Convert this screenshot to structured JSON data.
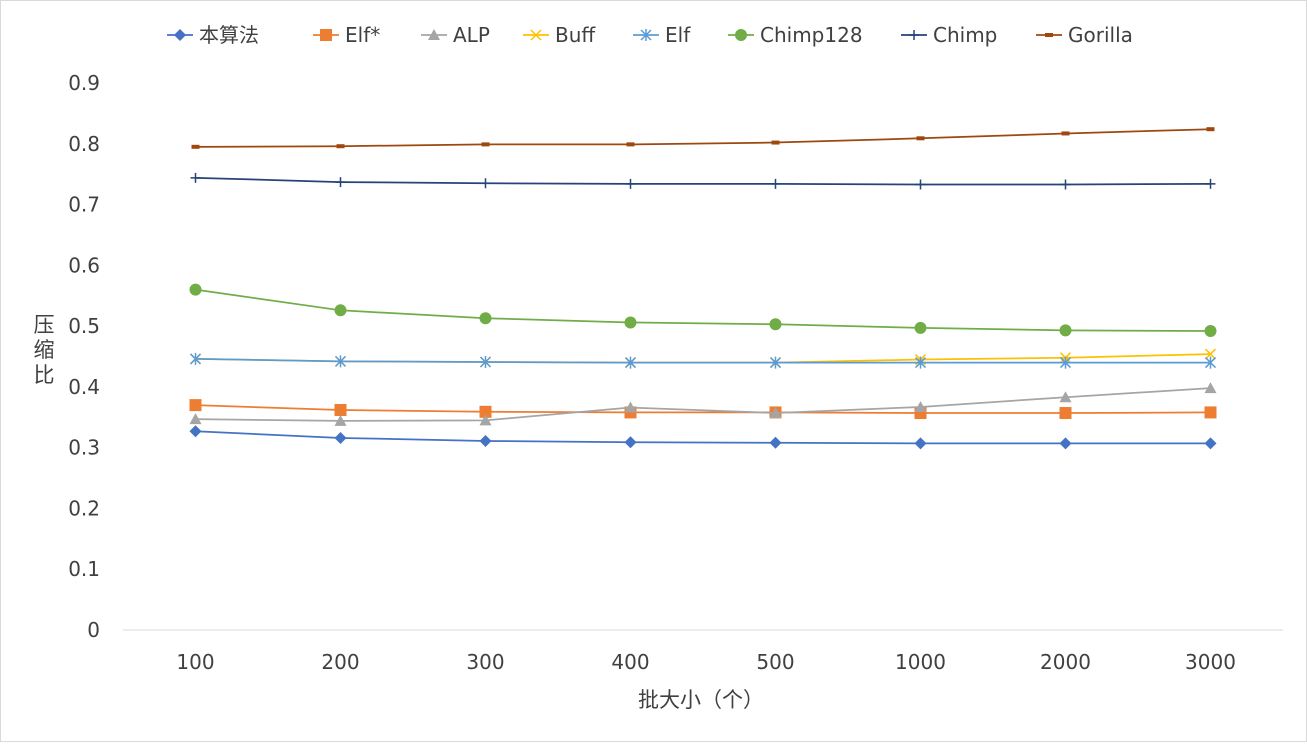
{
  "chart_data": {
    "type": "line",
    "title": "",
    "xlabel": "批大小（个）",
    "ylabel": "压缩比",
    "categories": [
      "100",
      "200",
      "300",
      "400",
      "500",
      "1000",
      "2000",
      "3000"
    ],
    "ylim": [
      0,
      0.9
    ],
    "yticks": [
      "0",
      "0.1",
      "0.2",
      "0.3",
      "0.4",
      "0.5",
      "0.6",
      "0.7",
      "0.8",
      "0.9"
    ],
    "grid": false,
    "legend_position": "top",
    "series": [
      {
        "name": "本算法",
        "color": "#4472C4",
        "marker": "diamond",
        "values": [
          0.327,
          0.316,
          0.311,
          0.309,
          0.308,
          0.307,
          0.307,
          0.307
        ]
      },
      {
        "name": "Elf*",
        "color": "#ED7D31",
        "marker": "square",
        "values": [
          0.37,
          0.362,
          0.359,
          0.358,
          0.358,
          0.357,
          0.357,
          0.358
        ]
      },
      {
        "name": "ALP",
        "color": "#A5A5A5",
        "marker": "triangle",
        "values": [
          0.347,
          0.344,
          0.345,
          0.366,
          0.357,
          0.367,
          0.383,
          0.398
        ]
      },
      {
        "name": "Buff",
        "color": "#FFC000",
        "marker": "x",
        "values": [
          0.446,
          0.442,
          0.441,
          0.44,
          0.44,
          0.445,
          0.448,
          0.454
        ]
      },
      {
        "name": "Elf",
        "color": "#5B9BD5",
        "marker": "star",
        "values": [
          0.446,
          0.442,
          0.441,
          0.44,
          0.44,
          0.44,
          0.44,
          0.44
        ]
      },
      {
        "name": "Chimp128",
        "color": "#70AD47",
        "marker": "circle",
        "values": [
          0.56,
          0.526,
          0.513,
          0.506,
          0.503,
          0.497,
          0.493,
          0.492
        ]
      },
      {
        "name": "Chimp",
        "color": "#264478",
        "marker": "plus",
        "values": [
          0.744,
          0.737,
          0.735,
          0.734,
          0.734,
          0.733,
          0.733,
          0.734
        ]
      },
      {
        "name": "Gorilla",
        "color": "#9E480E",
        "marker": "dash",
        "values": [
          0.795,
          0.796,
          0.799,
          0.799,
          0.802,
          0.809,
          0.817,
          0.824
        ]
      }
    ]
  }
}
